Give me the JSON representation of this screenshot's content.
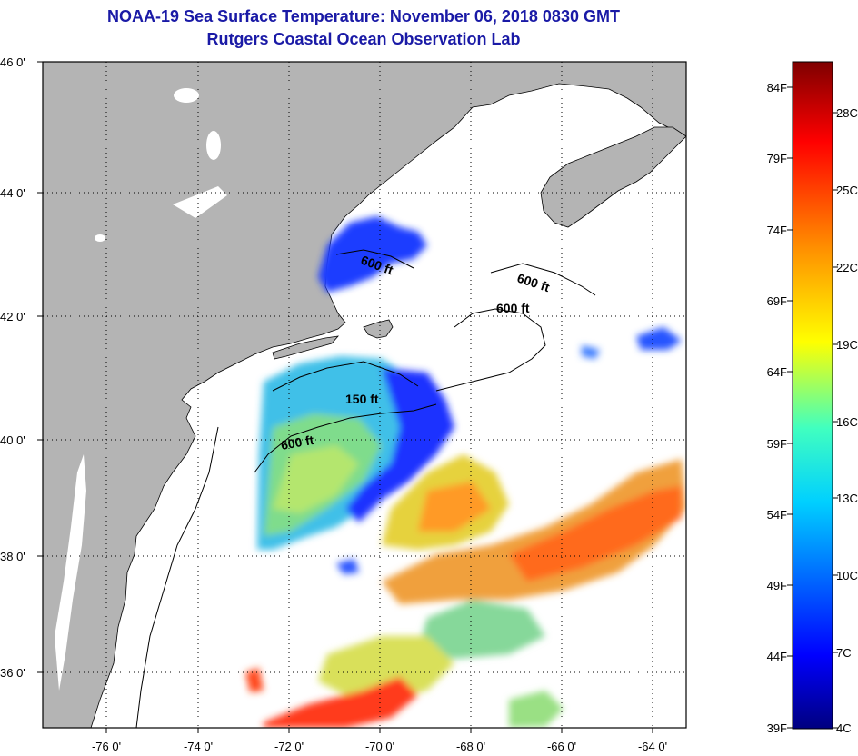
{
  "title": "NOAA-19 Sea Surface Temperature:  November 06, 2018 0830 GMT",
  "subtitle": "Rutgers Coastal Ocean Observation Lab",
  "lat_labels": [
    "46 0'",
    "44 0'",
    "42 0'",
    "40 0'",
    "38 0'",
    "36 0'"
  ],
  "lon_labels": [
    "-76 0'",
    "-74 0'",
    "-72 0'",
    "-70 0'",
    "-68 0'",
    "-66 0'",
    "-64 0'"
  ],
  "contour_labels": [
    "600 ft",
    "600 ft",
    "600 ft",
    "150 ft",
    "600 ft"
  ],
  "colorbar": {
    "f_labels": [
      "84F",
      "79F",
      "74F",
      "69F",
      "64F",
      "59F",
      "54F",
      "49F",
      "44F",
      "39F"
    ],
    "c_labels": [
      "28C",
      "25C",
      "22C",
      "19C",
      "16C",
      "13C",
      "10C",
      "7C",
      "4C"
    ],
    "range_f": [
      39,
      86
    ],
    "colors": [
      "#00007f",
      "#0000ff",
      "#0080ff",
      "#00ffff",
      "#80ff80",
      "#ffff00",
      "#ff8000",
      "#ff0000",
      "#7f0000"
    ]
  },
  "colors": {
    "land": "#b4b4b4",
    "water": "#ffffff",
    "title": "#1a1aa6"
  }
}
